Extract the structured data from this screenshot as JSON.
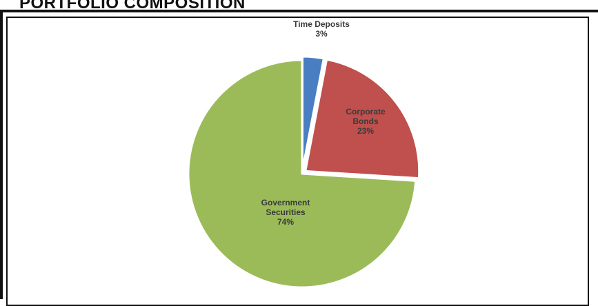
{
  "title": "PORTFOLIO COMPOSITION",
  "chart_data": {
    "type": "pie",
    "title": "",
    "slices": [
      {
        "label": [
          "Time Deposits"
        ],
        "value_label": "3%",
        "value": 3,
        "color": "#4a7ec2"
      },
      {
        "label": [
          "Corporate",
          "Bonds"
        ],
        "value_label": "23%",
        "value": 23,
        "color": "#c0504d"
      },
      {
        "label": [
          "Government",
          "Securities"
        ],
        "value_label": "74%",
        "value": 74,
        "color": "#9bbb59"
      }
    ],
    "start_angle_deg": 0,
    "direction": "clockwise"
  }
}
